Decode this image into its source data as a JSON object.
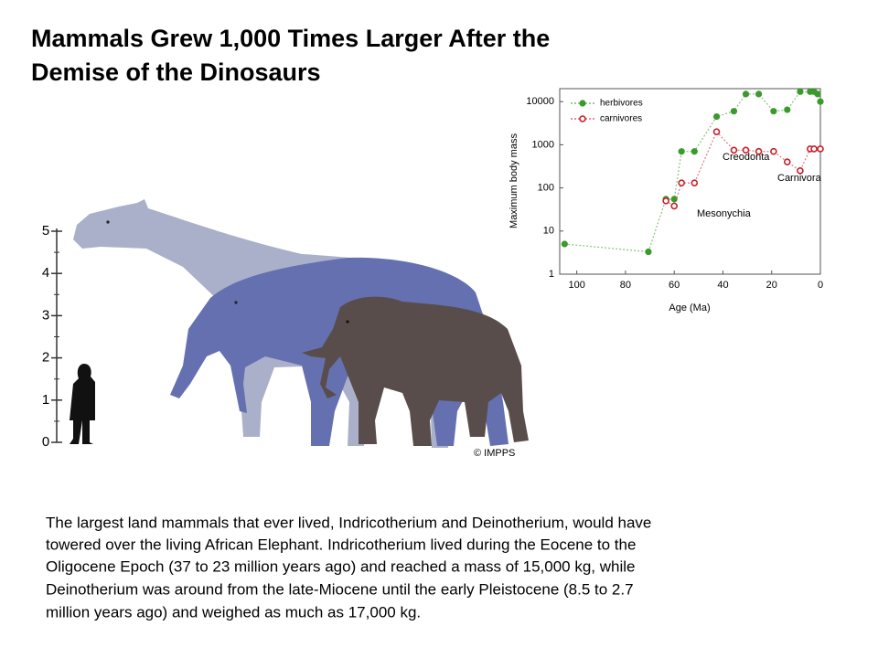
{
  "title": [
    "Mammals Grew 1,000 Times Larger After the",
    "Demise of the Dinosaurs"
  ],
  "body": [
    "The largest land mammals that ever lived, Indricotherium and Deinotherium, would have",
    "towered over the living African Elephant. Indricotherium lived during the Eocene to the",
    "Oligocene Epoch (37 to 23 million years ago) and reached a mass of 15,000 kg, while",
    "Deinotherium was around from the late-Miocene until the early Pleistocene (8.5 to 2.7",
    "million years ago) and weighed as much as 17,000 kg."
  ],
  "illustration": {
    "scale_labels": [
      0,
      1,
      2,
      3,
      4,
      5
    ],
    "credit": "© IMPPS"
  },
  "chart_data": {
    "type": "line",
    "xlabel": "Age (Ma)",
    "ylabel": "Maximum body mass",
    "xlim": [
      107,
      0
    ],
    "xticks": [
      100,
      80,
      60,
      40,
      20,
      0
    ],
    "ylim": [
      1,
      20000
    ],
    "yticks": [
      1,
      10,
      100,
      1000,
      10000
    ],
    "log_y": true,
    "legend": "upper left",
    "annotations": [
      "Mesonychia",
      "Creodonta",
      "Carnivora"
    ],
    "series": [
      {
        "name": "herbivores",
        "color": "#3b9a2c",
        "x": [
          105,
          70.6,
          63.4,
          60,
          57,
          51.7,
          42.6,
          35.5,
          30.6,
          25.3,
          19.2,
          13.6,
          8.3,
          4.2,
          2.6,
          1.1,
          0
        ],
        "values": [
          5,
          3.3,
          55,
          55,
          700,
          700,
          4500,
          6000,
          15000,
          15000,
          6000,
          6500,
          17000,
          17000,
          17000,
          15000,
          10000
        ]
      },
      {
        "name": "carnivores",
        "color": "#c8202a",
        "x": [
          63.4,
          60,
          57,
          51.7,
          42.6,
          35.5,
          30.6,
          25.3,
          19.2,
          13.6,
          8.3,
          4.2,
          2.6,
          0
        ],
        "values": [
          50,
          38,
          130,
          130,
          2000,
          750,
          750,
          700,
          700,
          400,
          250,
          800,
          800,
          800
        ]
      }
    ]
  }
}
